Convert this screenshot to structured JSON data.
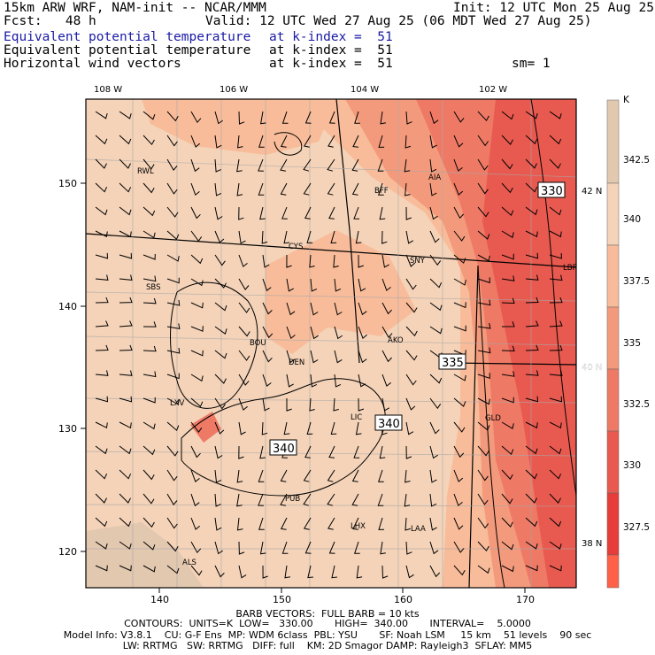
{
  "header": {
    "model_line": "15km ARW WRF, NAM-init -- NCAR/MMM",
    "init_line": "Init: 12 UTC Mon 25 Aug 25",
    "fcst_line": "Fcst:   48 h",
    "valid_line": "Valid: 12 UTC Wed 27 Aug 25 (06 MDT Wed 27 Aug 25)",
    "fields": [
      {
        "name": "Equivalent potential temperature",
        "level": "at k-index =  51"
      },
      {
        "name": "Equivalent potential temperature",
        "level": "at k-index =  51"
      },
      {
        "name": "Horizontal wind vectors",
        "level": "at k-index =  51"
      }
    ],
    "smoothing": "sm= 1"
  },
  "map": {
    "lon_top_labels": [
      "108 W",
      "106 W",
      "104 W",
      "102 W"
    ],
    "lat_right_labels": [
      "42 N",
      "40 N",
      "38 N"
    ],
    "x_axis_ticks": [
      "140",
      "150",
      "160",
      "170"
    ],
    "y_axis_ticks": [
      "150",
      "140",
      "130",
      "120"
    ],
    "stations": [
      "RWL",
      "CYS",
      "BFF",
      "AIA",
      "SBS",
      "SNY",
      "LBF",
      "BOU",
      "DEN",
      "AKO",
      "LXV",
      "LIC",
      "GLD",
      "PUB",
      "LHX",
      "LAA",
      "ALS"
    ],
    "contour_labels": [
      "330",
      "335",
      "340",
      "340"
    ]
  },
  "colorbar": {
    "unit": "K",
    "tick_labels": [
      "342.5",
      "340",
      "337.5",
      "335",
      "332.5",
      "330",
      "327.5"
    ],
    "colors": [
      "#e3c8b0",
      "#f4d3b8",
      "#f8bc9a",
      "#f49a7c",
      "#ee7a66",
      "#e85a50",
      "#e63c3a",
      "#ff6048"
    ]
  },
  "footer": {
    "barb_line": "BARB VECTORS:  FULL BARB = 10 kts",
    "contour_line": "CONTOURS:  UNITS=K  LOW=   330.00       HIGH=  340.00       INTERVAL=    5.0000",
    "model_info_1": "Model Info: V3.8.1    CU: G-F Ens  MP: WDM 6class  PBL: YSU       SF: Noah LSM     15 km    51 levels    90 sec",
    "model_info_2": "LW: RRTMG   SW: RRTMG   DIFF: full    KM: 2D Smagor DAMP: Rayleigh3  SFLAY: MM5"
  }
}
